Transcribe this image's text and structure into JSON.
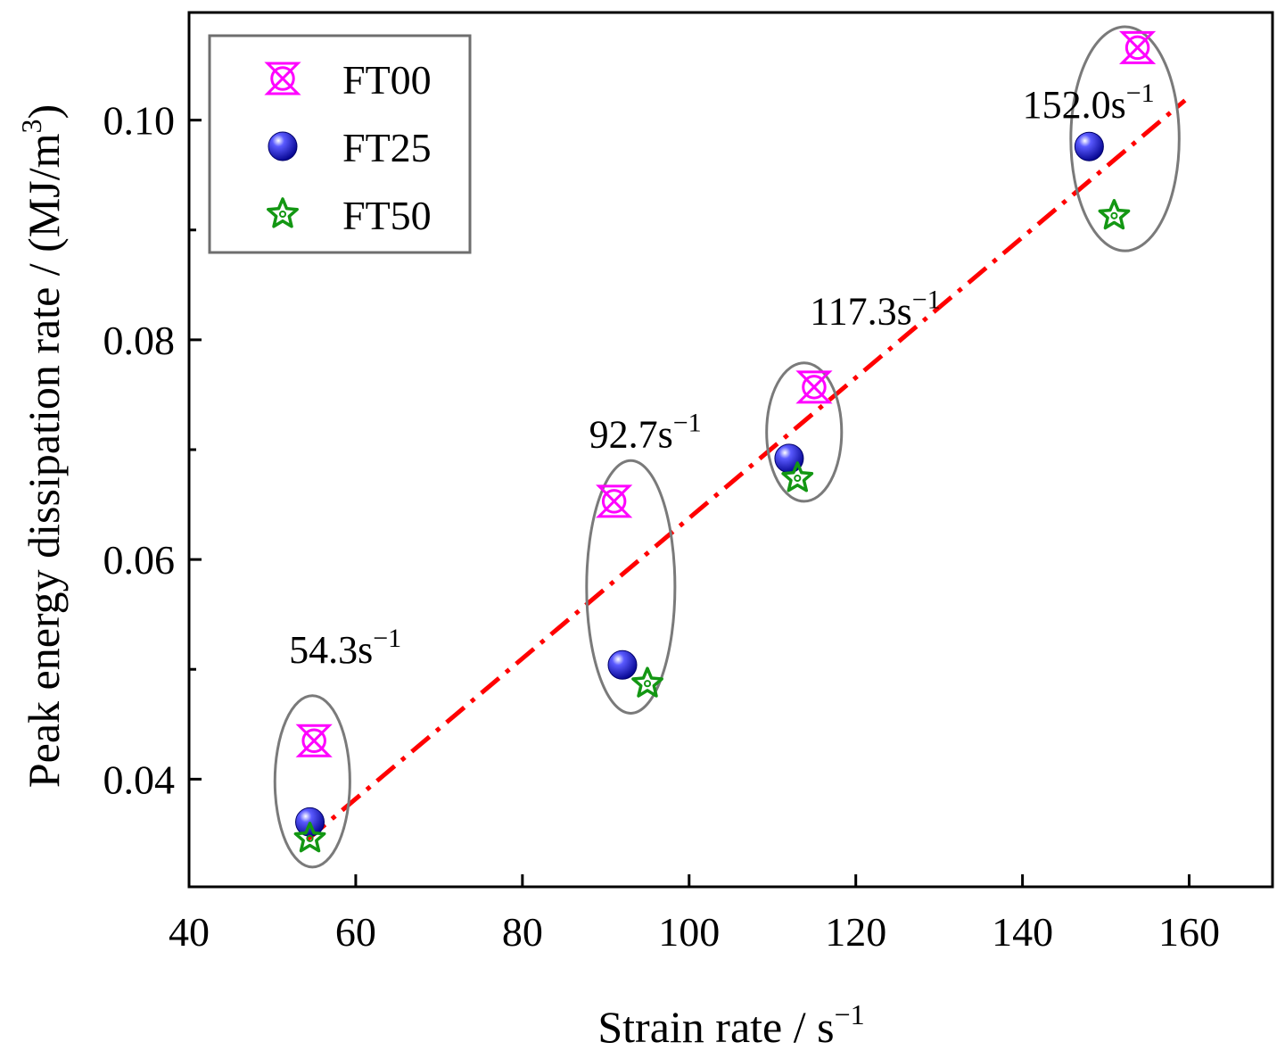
{
  "chart_data": {
    "type": "scatter",
    "xlabel": "Strain rate / s",
    "xlabel_sup": "−1",
    "ylabel": "Peak energy dissipation rate / (MJ/m",
    "ylabel_sup": "3",
    "ylabel_close": ")",
    "xlim": [
      40,
      170
    ],
    "ylim": [
      0.0302,
      0.1098
    ],
    "xticks": [
      40,
      60,
      80,
      100,
      120,
      140,
      160
    ],
    "xtick_labels": [
      "40",
      "60",
      "80",
      "100",
      "120",
      "140",
      "160"
    ],
    "yticks": [
      0.04,
      0.06,
      0.08,
      0.1
    ],
    "ytick_labels": [
      "0.04",
      "0.06",
      "0.08",
      "0.10"
    ],
    "yminor": [
      0.05,
      0.07,
      0.09
    ],
    "legend_position": "top-left",
    "series": [
      {
        "name": "FT00",
        "marker": "crossed-circle-bowtie",
        "color": "#ff00ff",
        "points": [
          [
            55.0,
            0.0435
          ],
          [
            91.0,
            0.0653
          ],
          [
            115.0,
            0.0757
          ],
          [
            153.8,
            0.1066
          ]
        ]
      },
      {
        "name": "FT25",
        "marker": "sphere",
        "color": "#1010e0",
        "points": [
          [
            54.5,
            0.0361
          ],
          [
            92.0,
            0.0504
          ],
          [
            112.0,
            0.0692
          ],
          [
            148.0,
            0.0976
          ]
        ]
      },
      {
        "name": "FT50",
        "marker": "star",
        "color": "#139713",
        "points": [
          [
            54.5,
            0.0346
          ],
          [
            95.0,
            0.0487
          ],
          [
            113.0,
            0.0674
          ],
          [
            151.0,
            0.0913
          ]
        ]
      }
    ],
    "fit_line": {
      "style": "dash-dot",
      "color": "#ff0000",
      "points": [
        [
          54.2,
          0.0345
        ],
        [
          159.5,
          0.1018
        ]
      ]
    },
    "groups": [
      {
        "label": "54.3s",
        "sup": "−1",
        "center": [
          54.8,
          0.0398
        ],
        "radius": [
          4.5,
          0.0078
        ],
        "label_at": [
          52.0,
          0.0506
        ]
      },
      {
        "label": "92.7s",
        "sup": "−1",
        "center": [
          93.0,
          0.0575
        ],
        "radius": [
          5.3,
          0.0115
        ],
        "label_at": [
          88.0,
          0.0702
        ]
      },
      {
        "label": "117.3s",
        "sup": "−1",
        "center": [
          113.8,
          0.0716
        ],
        "radius": [
          4.5,
          0.0063
        ],
        "label_at": [
          114.5,
          0.0814
        ]
      },
      {
        "label": "152.0s",
        "sup": "−1",
        "center": [
          152.3,
          0.0983
        ],
        "radius": [
          6.5,
          0.0102
        ],
        "label_at": [
          140.0,
          0.1002
        ]
      }
    ]
  }
}
